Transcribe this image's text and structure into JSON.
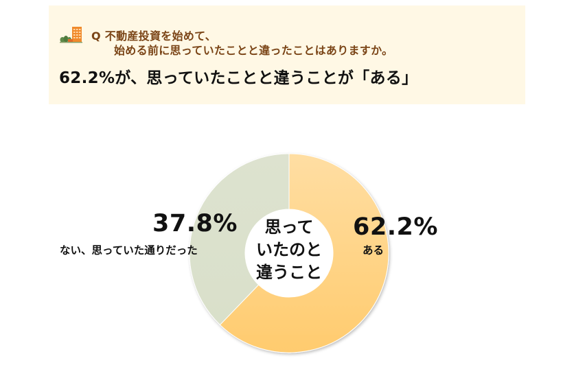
{
  "header": {
    "question_line1": "Q 不動産投資を始めて、",
    "question_line2": "始める前に思っていたことと違ったことはありますか。",
    "headline": "62.2%が、思っていたことと違うことが「ある」",
    "icon": "building-trees-icon",
    "background_color": "#FFF8E5",
    "question_color": "#7A4416"
  },
  "chart_data": {
    "type": "pie",
    "variant": "donut",
    "title": "思っていたのと違うこと",
    "center_label_lines": [
      "思って",
      "いたのと",
      "違うこと"
    ],
    "categories": [
      "ある",
      "ない、思っていた通りだった"
    ],
    "values": [
      62.2,
      37.8
    ],
    "value_labels": [
      "62.2%",
      "37.8%"
    ],
    "colors": [
      "#FFD27E",
      "#DDE2CE"
    ],
    "start_angle": "12 o'clock",
    "direction": "clockwise",
    "legend": "none (direct labels)"
  },
  "labels": {
    "right_pct": "62.2%",
    "right_name": "ある",
    "left_pct": "37.8%",
    "left_name": "ない、思っていた通りだった",
    "center": [
      "思って",
      "いたのと",
      "違うこと"
    ]
  }
}
